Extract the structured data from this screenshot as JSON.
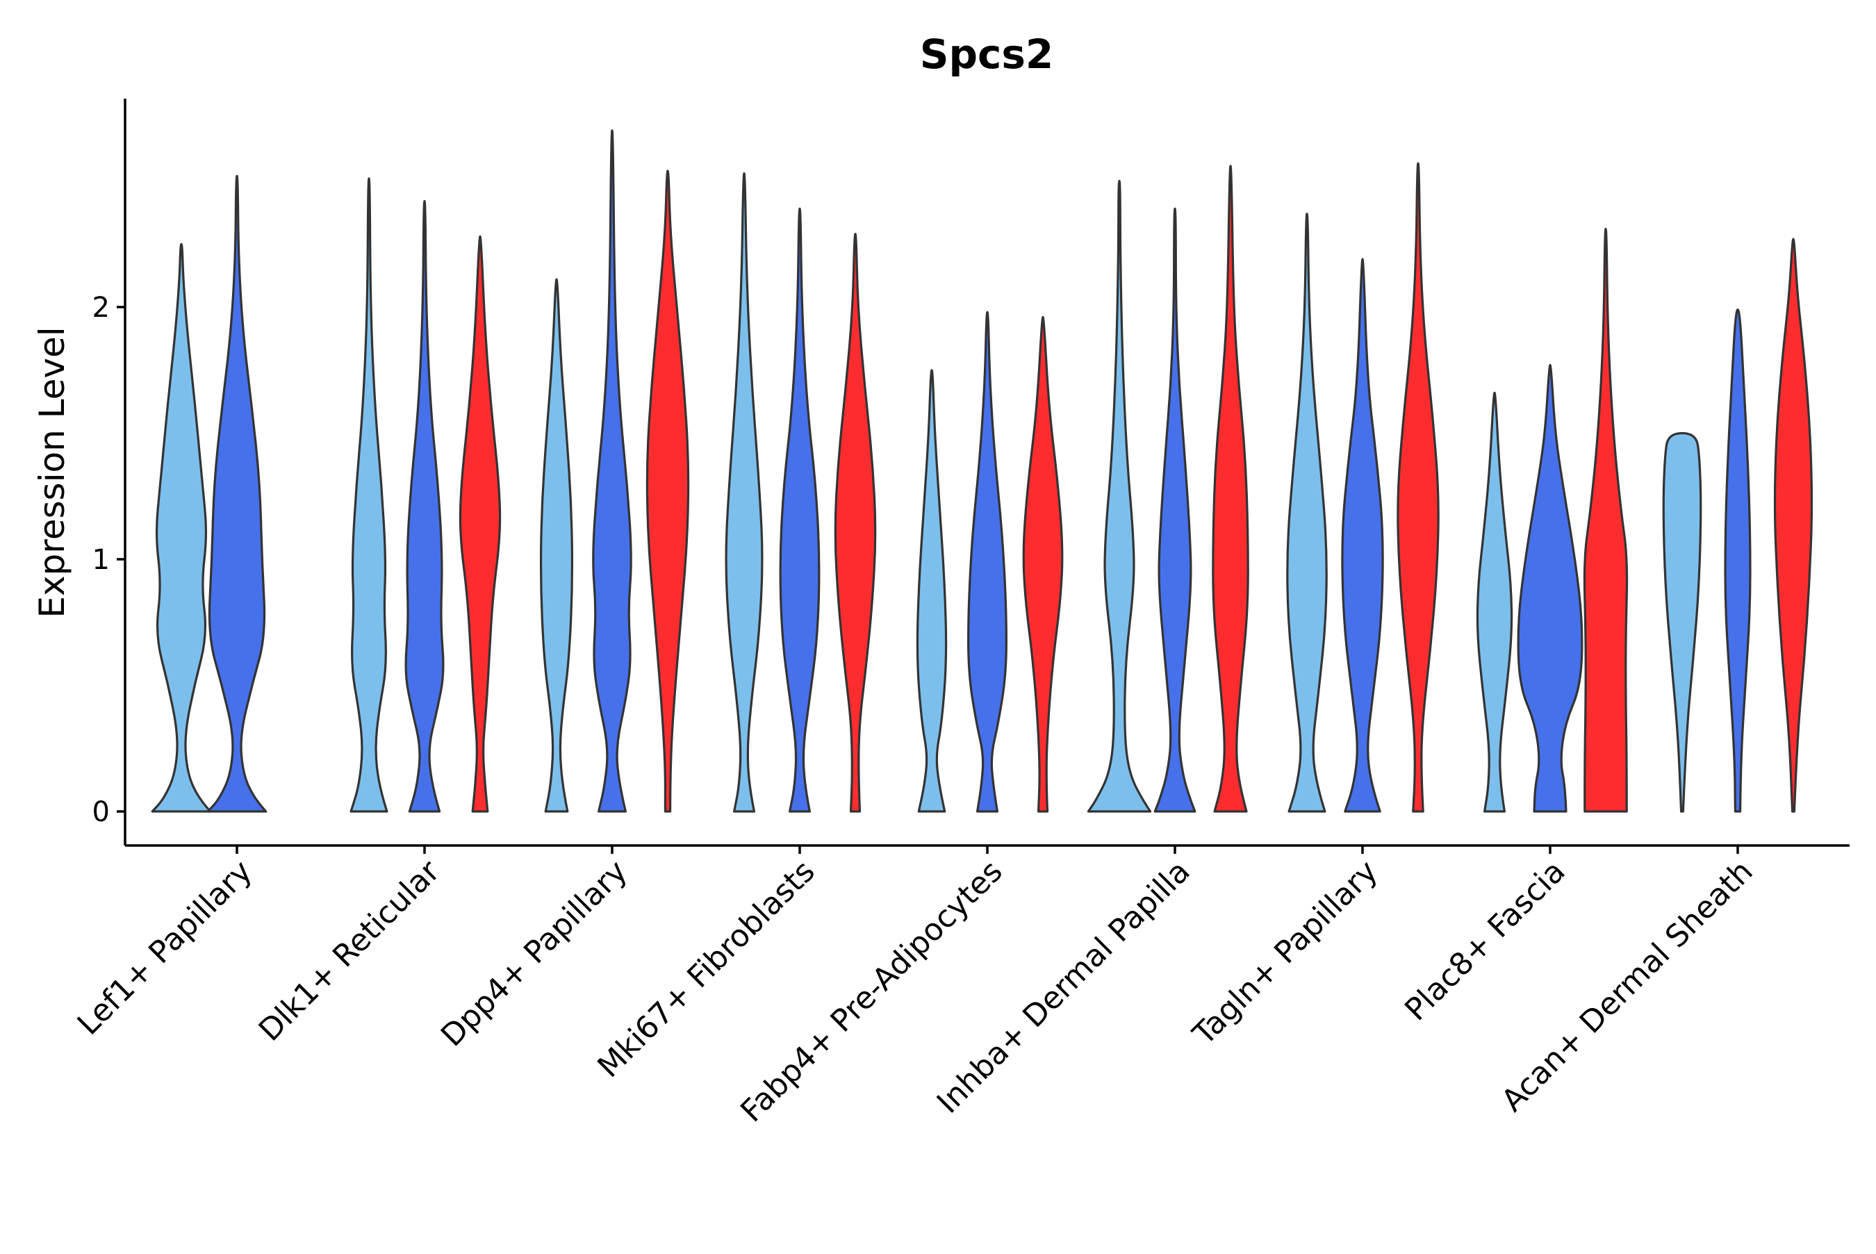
{
  "chart_data": {
    "type": "violin",
    "title": "Spcs2",
    "xlabel": "",
    "ylabel": "Expression Level",
    "ylim": [
      -0.14,
      2.85
    ],
    "y_ticks": [
      0,
      1,
      2
    ],
    "grid": false,
    "legend": "none",
    "colors": {
      "group1": "#7dbfec",
      "group2": "#4671ea",
      "group3": "#fd2d2f"
    },
    "categories": [
      "Lef1+ Papillary",
      "Dlk1+ Reticular",
      "Dpp4+ Papillary",
      "Mki67+ Fibroblasts",
      "Fabp4+ Pre-Adipocytes",
      "Inhba+ Dermal Papilla",
      "Tagln+ Papillary",
      "Plac8+ Fascia",
      "Acan+ Dermal Sheath"
    ],
    "violins": [
      {
        "category": "Lef1+ Papillary",
        "group": 1,
        "max": 2.25,
        "profile": [
          [
            0,
            0.58
          ],
          [
            0.05,
            0.35
          ],
          [
            0.15,
            0.12
          ],
          [
            0.3,
            0.06
          ],
          [
            0.5,
            0.26
          ],
          [
            0.7,
            0.52
          ],
          [
            0.9,
            0.4
          ],
          [
            1.1,
            0.52
          ],
          [
            1.3,
            0.42
          ],
          [
            1.6,
            0.28
          ],
          [
            1.9,
            0.12
          ],
          [
            2.1,
            0.04
          ],
          [
            2.25,
            0
          ]
        ]
      },
      {
        "category": "Lef1+ Papillary",
        "group": 2,
        "max": 2.52,
        "profile": [
          [
            0,
            0.58
          ],
          [
            0.05,
            0.35
          ],
          [
            0.15,
            0.12
          ],
          [
            0.3,
            0.06
          ],
          [
            0.5,
            0.3
          ],
          [
            0.7,
            0.58
          ],
          [
            1.0,
            0.5
          ],
          [
            1.3,
            0.46
          ],
          [
            1.6,
            0.3
          ],
          [
            1.9,
            0.12
          ],
          [
            2.2,
            0.03
          ],
          [
            2.52,
            0
          ]
        ]
      },
      {
        "category": "Dlk1+ Reticular",
        "group": 1,
        "max": 2.51,
        "profile": [
          [
            0,
            0.36
          ],
          [
            0.1,
            0.2
          ],
          [
            0.25,
            0.12
          ],
          [
            0.4,
            0.2
          ],
          [
            0.58,
            0.36
          ],
          [
            0.8,
            0.3
          ],
          [
            1.0,
            0.34
          ],
          [
            1.3,
            0.25
          ],
          [
            1.6,
            0.12
          ],
          [
            2.0,
            0.03
          ],
          [
            2.51,
            0
          ]
        ]
      },
      {
        "category": "Dlk1+ Reticular",
        "group": 2,
        "max": 2.42,
        "profile": [
          [
            0,
            0.3
          ],
          [
            0.1,
            0.15
          ],
          [
            0.25,
            0.07
          ],
          [
            0.4,
            0.25
          ],
          [
            0.55,
            0.4
          ],
          [
            0.75,
            0.32
          ],
          [
            1.0,
            0.36
          ],
          [
            1.3,
            0.27
          ],
          [
            1.6,
            0.12
          ],
          [
            2.0,
            0.03
          ],
          [
            2.42,
            0
          ]
        ]
      },
      {
        "category": "Dlk1+ Reticular",
        "group": 3,
        "max": 2.28,
        "profile": [
          [
            0,
            0.15
          ],
          [
            0.1,
            0.1
          ],
          [
            0.25,
            0.05
          ],
          [
            0.4,
            0.12
          ],
          [
            0.6,
            0.18
          ],
          [
            0.85,
            0.25
          ],
          [
            1.1,
            0.41
          ],
          [
            1.3,
            0.38
          ],
          [
            1.6,
            0.22
          ],
          [
            1.9,
            0.1
          ],
          [
            2.28,
            0
          ]
        ]
      },
      {
        "category": "Dpp4+ Papillary",
        "group": 1,
        "max": 2.11,
        "profile": [
          [
            0,
            0.22
          ],
          [
            0.1,
            0.12
          ],
          [
            0.25,
            0.06
          ],
          [
            0.4,
            0.12
          ],
          [
            0.6,
            0.25
          ],
          [
            0.9,
            0.32
          ],
          [
            1.2,
            0.3
          ],
          [
            1.5,
            0.2
          ],
          [
            1.8,
            0.08
          ],
          [
            2.11,
            0
          ]
        ]
      },
      {
        "category": "Dpp4+ Papillary",
        "group": 2,
        "max": 2.7,
        "profile": [
          [
            0,
            0.27
          ],
          [
            0.1,
            0.15
          ],
          [
            0.25,
            0.07
          ],
          [
            0.45,
            0.28
          ],
          [
            0.6,
            0.38
          ],
          [
            0.8,
            0.32
          ],
          [
            1.0,
            0.4
          ],
          [
            1.3,
            0.3
          ],
          [
            1.6,
            0.15
          ],
          [
            2.0,
            0.05
          ],
          [
            2.7,
            0
          ]
        ]
      },
      {
        "category": "Dpp4+ Papillary",
        "group": 3,
        "max": 2.54,
        "profile": [
          [
            0,
            0.05
          ],
          [
            0.2,
            0.05
          ],
          [
            0.5,
            0.15
          ],
          [
            0.8,
            0.28
          ],
          [
            1.1,
            0.4
          ],
          [
            1.4,
            0.42
          ],
          [
            1.7,
            0.32
          ],
          [
            2.0,
            0.18
          ],
          [
            2.3,
            0.05
          ],
          [
            2.54,
            0
          ]
        ]
      },
      {
        "category": "Mki67+ Fibroblasts",
        "group": 1,
        "max": 2.53,
        "profile": [
          [
            0,
            0.2
          ],
          [
            0.1,
            0.1
          ],
          [
            0.25,
            0.06
          ],
          [
            0.45,
            0.15
          ],
          [
            0.7,
            0.3
          ],
          [
            1.0,
            0.38
          ],
          [
            1.3,
            0.3
          ],
          [
            1.7,
            0.15
          ],
          [
            2.1,
            0.05
          ],
          [
            2.53,
            0
          ]
        ]
      },
      {
        "category": "Mki67+ Fibroblasts",
        "group": 2,
        "max": 2.39,
        "profile": [
          [
            0,
            0.2
          ],
          [
            0.1,
            0.1
          ],
          [
            0.25,
            0.06
          ],
          [
            0.45,
            0.2
          ],
          [
            0.7,
            0.36
          ],
          [
            1.0,
            0.4
          ],
          [
            1.3,
            0.32
          ],
          [
            1.6,
            0.15
          ],
          [
            2.0,
            0.04
          ],
          [
            2.39,
            0
          ]
        ]
      },
      {
        "category": "Mki67+ Fibroblasts",
        "group": 3,
        "max": 2.29,
        "profile": [
          [
            0,
            0.09
          ],
          [
            0.15,
            0.06
          ],
          [
            0.35,
            0.08
          ],
          [
            0.55,
            0.2
          ],
          [
            0.8,
            0.33
          ],
          [
            1.1,
            0.42
          ],
          [
            1.4,
            0.34
          ],
          [
            1.7,
            0.18
          ],
          [
            2.0,
            0.05
          ],
          [
            2.29,
            0
          ]
        ]
      },
      {
        "category": "Fabp4+ Pre-Adipocytes",
        "group": 1,
        "max": 1.75,
        "profile": [
          [
            0,
            0.26
          ],
          [
            0.1,
            0.15
          ],
          [
            0.22,
            0.08
          ],
          [
            0.35,
            0.2
          ],
          [
            0.6,
            0.3
          ],
          [
            0.9,
            0.26
          ],
          [
            1.2,
            0.16
          ],
          [
            1.5,
            0.06
          ],
          [
            1.75,
            0
          ]
        ]
      },
      {
        "category": "Fabp4+ Pre-Adipocytes",
        "group": 2,
        "max": 1.98,
        "profile": [
          [
            0,
            0.2
          ],
          [
            0.1,
            0.12
          ],
          [
            0.22,
            0.07
          ],
          [
            0.35,
            0.22
          ],
          [
            0.55,
            0.38
          ],
          [
            0.8,
            0.38
          ],
          [
            1.1,
            0.3
          ],
          [
            1.4,
            0.15
          ],
          [
            1.7,
            0.05
          ],
          [
            1.98,
            0
          ]
        ]
      },
      {
        "category": "Fabp4+ Pre-Adipocytes",
        "group": 3,
        "max": 1.96,
        "profile": [
          [
            0,
            0.09
          ],
          [
            0.15,
            0.06
          ],
          [
            0.35,
            0.1
          ],
          [
            0.6,
            0.2
          ],
          [
            0.85,
            0.36
          ],
          [
            1.05,
            0.4
          ],
          [
            1.3,
            0.3
          ],
          [
            1.6,
            0.12
          ],
          [
            1.96,
            0
          ]
        ]
      },
      {
        "category": "Inhba+ Dermal Papilla",
        "group": 1,
        "max": 2.5,
        "profile": [
          [
            0,
            0.62
          ],
          [
            0.05,
            0.45
          ],
          [
            0.15,
            0.2
          ],
          [
            0.3,
            0.1
          ],
          [
            0.6,
            0.12
          ],
          [
            0.9,
            0.3
          ],
          [
            1.1,
            0.28
          ],
          [
            1.4,
            0.15
          ],
          [
            1.8,
            0.06
          ],
          [
            2.2,
            0.02
          ],
          [
            2.5,
            0
          ]
        ]
      },
      {
        "category": "Inhba+ Dermal Papilla",
        "group": 2,
        "max": 2.39,
        "profile": [
          [
            0,
            0.4
          ],
          [
            0.05,
            0.3
          ],
          [
            0.15,
            0.15
          ],
          [
            0.3,
            0.06
          ],
          [
            0.6,
            0.2
          ],
          [
            0.9,
            0.33
          ],
          [
            1.1,
            0.3
          ],
          [
            1.4,
            0.2
          ],
          [
            1.7,
            0.08
          ],
          [
            2.0,
            0.02
          ],
          [
            2.39,
            0
          ]
        ]
      },
      {
        "category": "Inhba+ Dermal Papilla",
        "group": 3,
        "max": 2.56,
        "profile": [
          [
            0,
            0.32
          ],
          [
            0.1,
            0.18
          ],
          [
            0.25,
            0.1
          ],
          [
            0.5,
            0.2
          ],
          [
            0.8,
            0.35
          ],
          [
            1.1,
            0.35
          ],
          [
            1.4,
            0.3
          ],
          [
            1.7,
            0.16
          ],
          [
            2.0,
            0.06
          ],
          [
            2.56,
            0
          ]
        ]
      },
      {
        "category": "Tagln+ Papillary",
        "group": 1,
        "max": 2.37,
        "profile": [
          [
            0,
            0.36
          ],
          [
            0.1,
            0.2
          ],
          [
            0.25,
            0.1
          ],
          [
            0.45,
            0.22
          ],
          [
            0.75,
            0.38
          ],
          [
            1.05,
            0.4
          ],
          [
            1.35,
            0.28
          ],
          [
            1.7,
            0.12
          ],
          [
            2.0,
            0.04
          ],
          [
            2.37,
            0
          ]
        ]
      },
      {
        "category": "Tagln+ Papillary",
        "group": 2,
        "max": 2.19,
        "profile": [
          [
            0,
            0.35
          ],
          [
            0.1,
            0.18
          ],
          [
            0.25,
            0.08
          ],
          [
            0.45,
            0.2
          ],
          [
            0.75,
            0.38
          ],
          [
            1.1,
            0.42
          ],
          [
            1.4,
            0.28
          ],
          [
            1.7,
            0.1
          ],
          [
            2.19,
            0
          ]
        ]
      },
      {
        "category": "Tagln+ Papillary",
        "group": 3,
        "max": 2.57,
        "profile": [
          [
            0,
            0.1
          ],
          [
            0.15,
            0.06
          ],
          [
            0.35,
            0.08
          ],
          [
            0.65,
            0.25
          ],
          [
            0.95,
            0.38
          ],
          [
            1.25,
            0.42
          ],
          [
            1.55,
            0.3
          ],
          [
            1.9,
            0.12
          ],
          [
            2.2,
            0.04
          ],
          [
            2.57,
            0
          ]
        ]
      },
      {
        "category": "Plac8+ Fascia",
        "group": 1,
        "max": 1.66,
        "profile": [
          [
            0,
            0.2
          ],
          [
            0.1,
            0.12
          ],
          [
            0.25,
            0.1
          ],
          [
            0.45,
            0.22
          ],
          [
            0.7,
            0.35
          ],
          [
            0.9,
            0.33
          ],
          [
            1.1,
            0.22
          ],
          [
            1.35,
            0.1
          ],
          [
            1.66,
            0
          ]
        ]
      },
      {
        "category": "Plac8+ Fascia",
        "group": 2,
        "max": 1.77,
        "profile": [
          [
            0,
            0.32
          ],
          [
            0.1,
            0.3
          ],
          [
            0.2,
            0.2
          ],
          [
            0.35,
            0.3
          ],
          [
            0.5,
            0.62
          ],
          [
            0.75,
            0.65
          ],
          [
            1.0,
            0.5
          ],
          [
            1.3,
            0.25
          ],
          [
            1.5,
            0.1
          ],
          [
            1.77,
            0
          ]
        ]
      },
      {
        "category": "Plac8+ Fascia",
        "group": 3,
        "max": 2.31,
        "profile": [
          [
            0,
            0.42
          ],
          [
            0.2,
            0.42
          ],
          [
            0.45,
            0.4
          ],
          [
            0.7,
            0.4
          ],
          [
            1.0,
            0.44
          ],
          [
            1.2,
            0.3
          ],
          [
            1.5,
            0.15
          ],
          [
            1.9,
            0.04
          ],
          [
            2.31,
            0
          ]
        ]
      },
      {
        "category": "Acan+ Dermal Sheath",
        "group": 1,
        "max": 1.5,
        "profile": [
          [
            0,
            0.02
          ],
          [
            0.3,
            0.08
          ],
          [
            0.6,
            0.22
          ],
          [
            0.9,
            0.34
          ],
          [
            1.2,
            0.38
          ],
          [
            1.4,
            0.35
          ],
          [
            1.5,
            0.28
          ]
        ]
      },
      {
        "category": "Acan+ Dermal Sheath",
        "group": 2,
        "max": 1.99,
        "profile": [
          [
            0,
            0.05
          ],
          [
            0.2,
            0.06
          ],
          [
            0.5,
            0.15
          ],
          [
            0.8,
            0.25
          ],
          [
            1.1,
            0.25
          ],
          [
            1.4,
            0.2
          ],
          [
            1.7,
            0.12
          ],
          [
            1.99,
            0.04
          ]
        ]
      },
      {
        "category": "Acan+ Dermal Sheath",
        "group": 3,
        "max": 2.27,
        "profile": [
          [
            0,
            0.02
          ],
          [
            0.3,
            0.08
          ],
          [
            0.6,
            0.22
          ],
          [
            0.9,
            0.32
          ],
          [
            1.2,
            0.38
          ],
          [
            1.5,
            0.34
          ],
          [
            1.8,
            0.22
          ],
          [
            2.05,
            0.08
          ],
          [
            2.27,
            0
          ]
        ]
      }
    ]
  }
}
